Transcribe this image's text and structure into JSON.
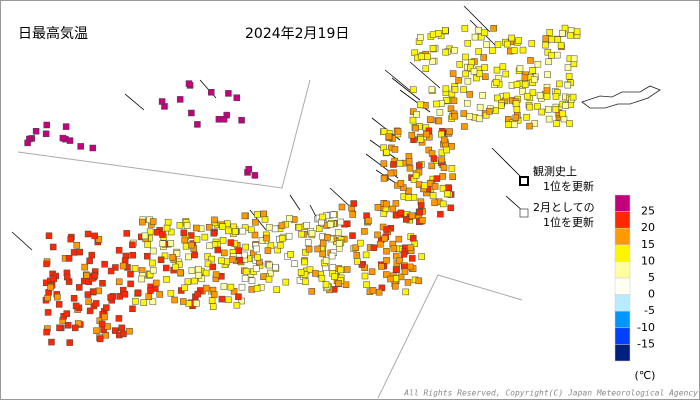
{
  "header": {
    "title": "日最高気温",
    "date": "2024年2月19日"
  },
  "record_legend": [
    {
      "lines": [
        "観測史上",
        "1位を更新"
      ]
    },
    {
      "lines": [
        "2月としての",
        "1位を更新"
      ]
    }
  ],
  "legend": {
    "colors": [
      "#c4007e",
      "#ff2800",
      "#ff9900",
      "#fff500",
      "#ffffa0",
      "#fffff2",
      "#b9ebff",
      "#0096ff",
      "#0041ff",
      "#002080"
    ],
    "ticks": [
      25,
      20,
      15,
      10,
      5,
      0,
      -5,
      -10,
      -15
    ],
    "unit": "(℃)"
  },
  "footer": {
    "copyright": "All Rights Reserved, Copyright(C) Japan Meteorological Agency"
  }
}
